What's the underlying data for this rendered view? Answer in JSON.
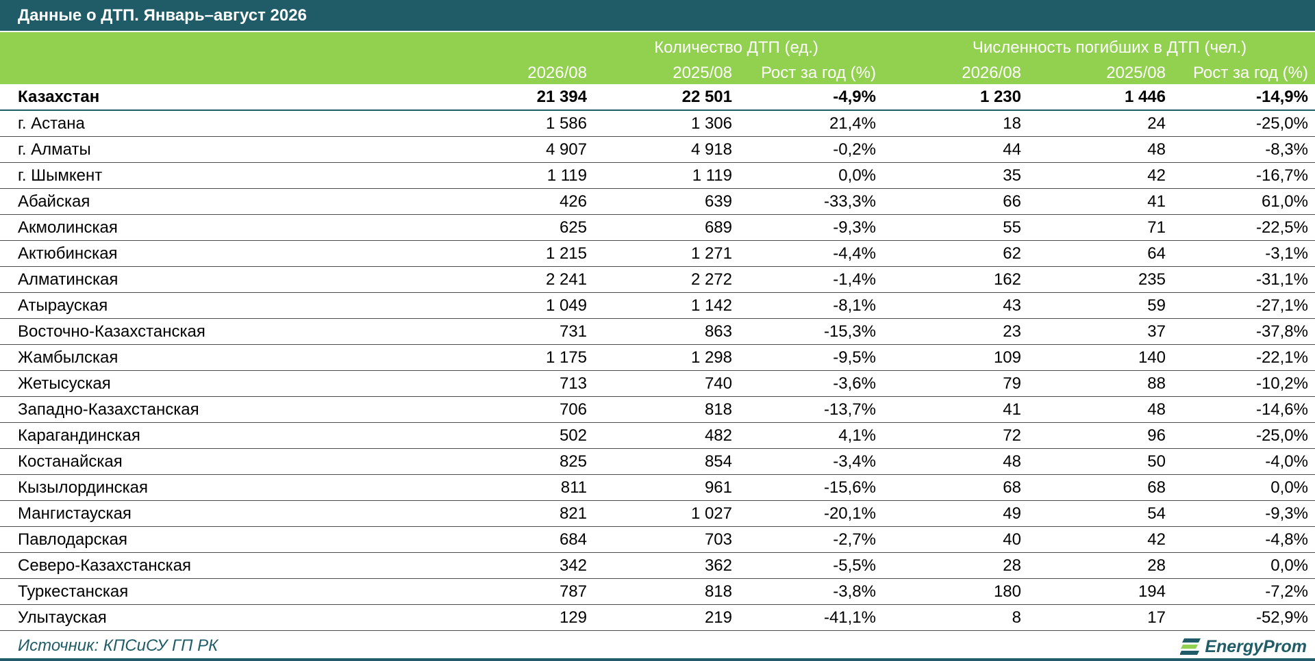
{
  "title": "Данные о ДТП. Январь–август 2026",
  "groups": {
    "accidents": "Количество ДТП (ед.)",
    "deaths": "Численность погибших в ДТП (чел.)"
  },
  "columns": [
    "2026/08",
    "2025/08",
    "Рост за год (%)",
    "2026/08",
    "2025/08",
    "Рост за год (%)"
  ],
  "rows": [
    {
      "name": "Казахстан",
      "v": [
        "21 394",
        "22 501",
        "-4,9%",
        "1 230",
        "1 446",
        "-14,9%"
      ]
    },
    {
      "name": "г. Астана",
      "v": [
        "1 586",
        "1 306",
        "21,4%",
        "18",
        "24",
        "-25,0%"
      ]
    },
    {
      "name": "г. Алматы",
      "v": [
        "4 907",
        "4 918",
        "-0,2%",
        "44",
        "48",
        "-8,3%"
      ]
    },
    {
      "name": "г. Шымкент",
      "v": [
        "1 119",
        "1 119",
        "0,0%",
        "35",
        "42",
        "-16,7%"
      ]
    },
    {
      "name": "Абайская",
      "v": [
        "426",
        "639",
        "-33,3%",
        "66",
        "41",
        "61,0%"
      ]
    },
    {
      "name": "Акмолинская",
      "v": [
        "625",
        "689",
        "-9,3%",
        "55",
        "71",
        "-22,5%"
      ]
    },
    {
      "name": "Актюбинская",
      "v": [
        "1 215",
        "1 271",
        "-4,4%",
        "62",
        "64",
        "-3,1%"
      ]
    },
    {
      "name": "Алматинская",
      "v": [
        "2 241",
        "2 272",
        "-1,4%",
        "162",
        "235",
        "-31,1%"
      ]
    },
    {
      "name": "Атырауская",
      "v": [
        "1 049",
        "1 142",
        "-8,1%",
        "43",
        "59",
        "-27,1%"
      ]
    },
    {
      "name": "Восточно-Казахстанская",
      "v": [
        "731",
        "863",
        "-15,3%",
        "23",
        "37",
        "-37,8%"
      ]
    },
    {
      "name": "Жамбылская",
      "v": [
        "1 175",
        "1 298",
        "-9,5%",
        "109",
        "140",
        "-22,1%"
      ]
    },
    {
      "name": "Жетысуская",
      "v": [
        "713",
        "740",
        "-3,6%",
        "79",
        "88",
        "-10,2%"
      ]
    },
    {
      "name": "Западно-Казахстанская",
      "v": [
        "706",
        "818",
        "-13,7%",
        "41",
        "48",
        "-14,6%"
      ]
    },
    {
      "name": "Карагандинская",
      "v": [
        "502",
        "482",
        "4,1%",
        "72",
        "96",
        "-25,0%"
      ]
    },
    {
      "name": "Костанайская",
      "v": [
        "825",
        "854",
        "-3,4%",
        "48",
        "50",
        "-4,0%"
      ]
    },
    {
      "name": "Кызылординская",
      "v": [
        "811",
        "961",
        "-15,6%",
        "68",
        "68",
        "0,0%"
      ]
    },
    {
      "name": "Мангистауская",
      "v": [
        "821",
        "1 027",
        "-20,1%",
        "49",
        "54",
        "-9,3%"
      ]
    },
    {
      "name": "Павлодарская",
      "v": [
        "684",
        "703",
        "-2,7%",
        "40",
        "42",
        "-4,8%"
      ]
    },
    {
      "name": "Северо-Казахстанская",
      "v": [
        "342",
        "362",
        "-5,5%",
        "28",
        "28",
        "0,0%"
      ]
    },
    {
      "name": "Туркестанская",
      "v": [
        "787",
        "818",
        "-3,8%",
        "180",
        "194",
        "-7,2%"
      ]
    },
    {
      "name": "Улытауская",
      "v": [
        "129",
        "219",
        "-41,1%",
        "8",
        "17",
        "-52,9%"
      ]
    }
  ],
  "source": "Источник: КПСиСУ ГП РК",
  "logo": "EnergyProm",
  "colors": {
    "title_bg": "#1f5c67",
    "header_bg": "#92d050",
    "header_text": "#ffffff",
    "source_text": "#1f5c67"
  },
  "icons": {
    "logo_mark": "energyprom-logo-icon"
  }
}
